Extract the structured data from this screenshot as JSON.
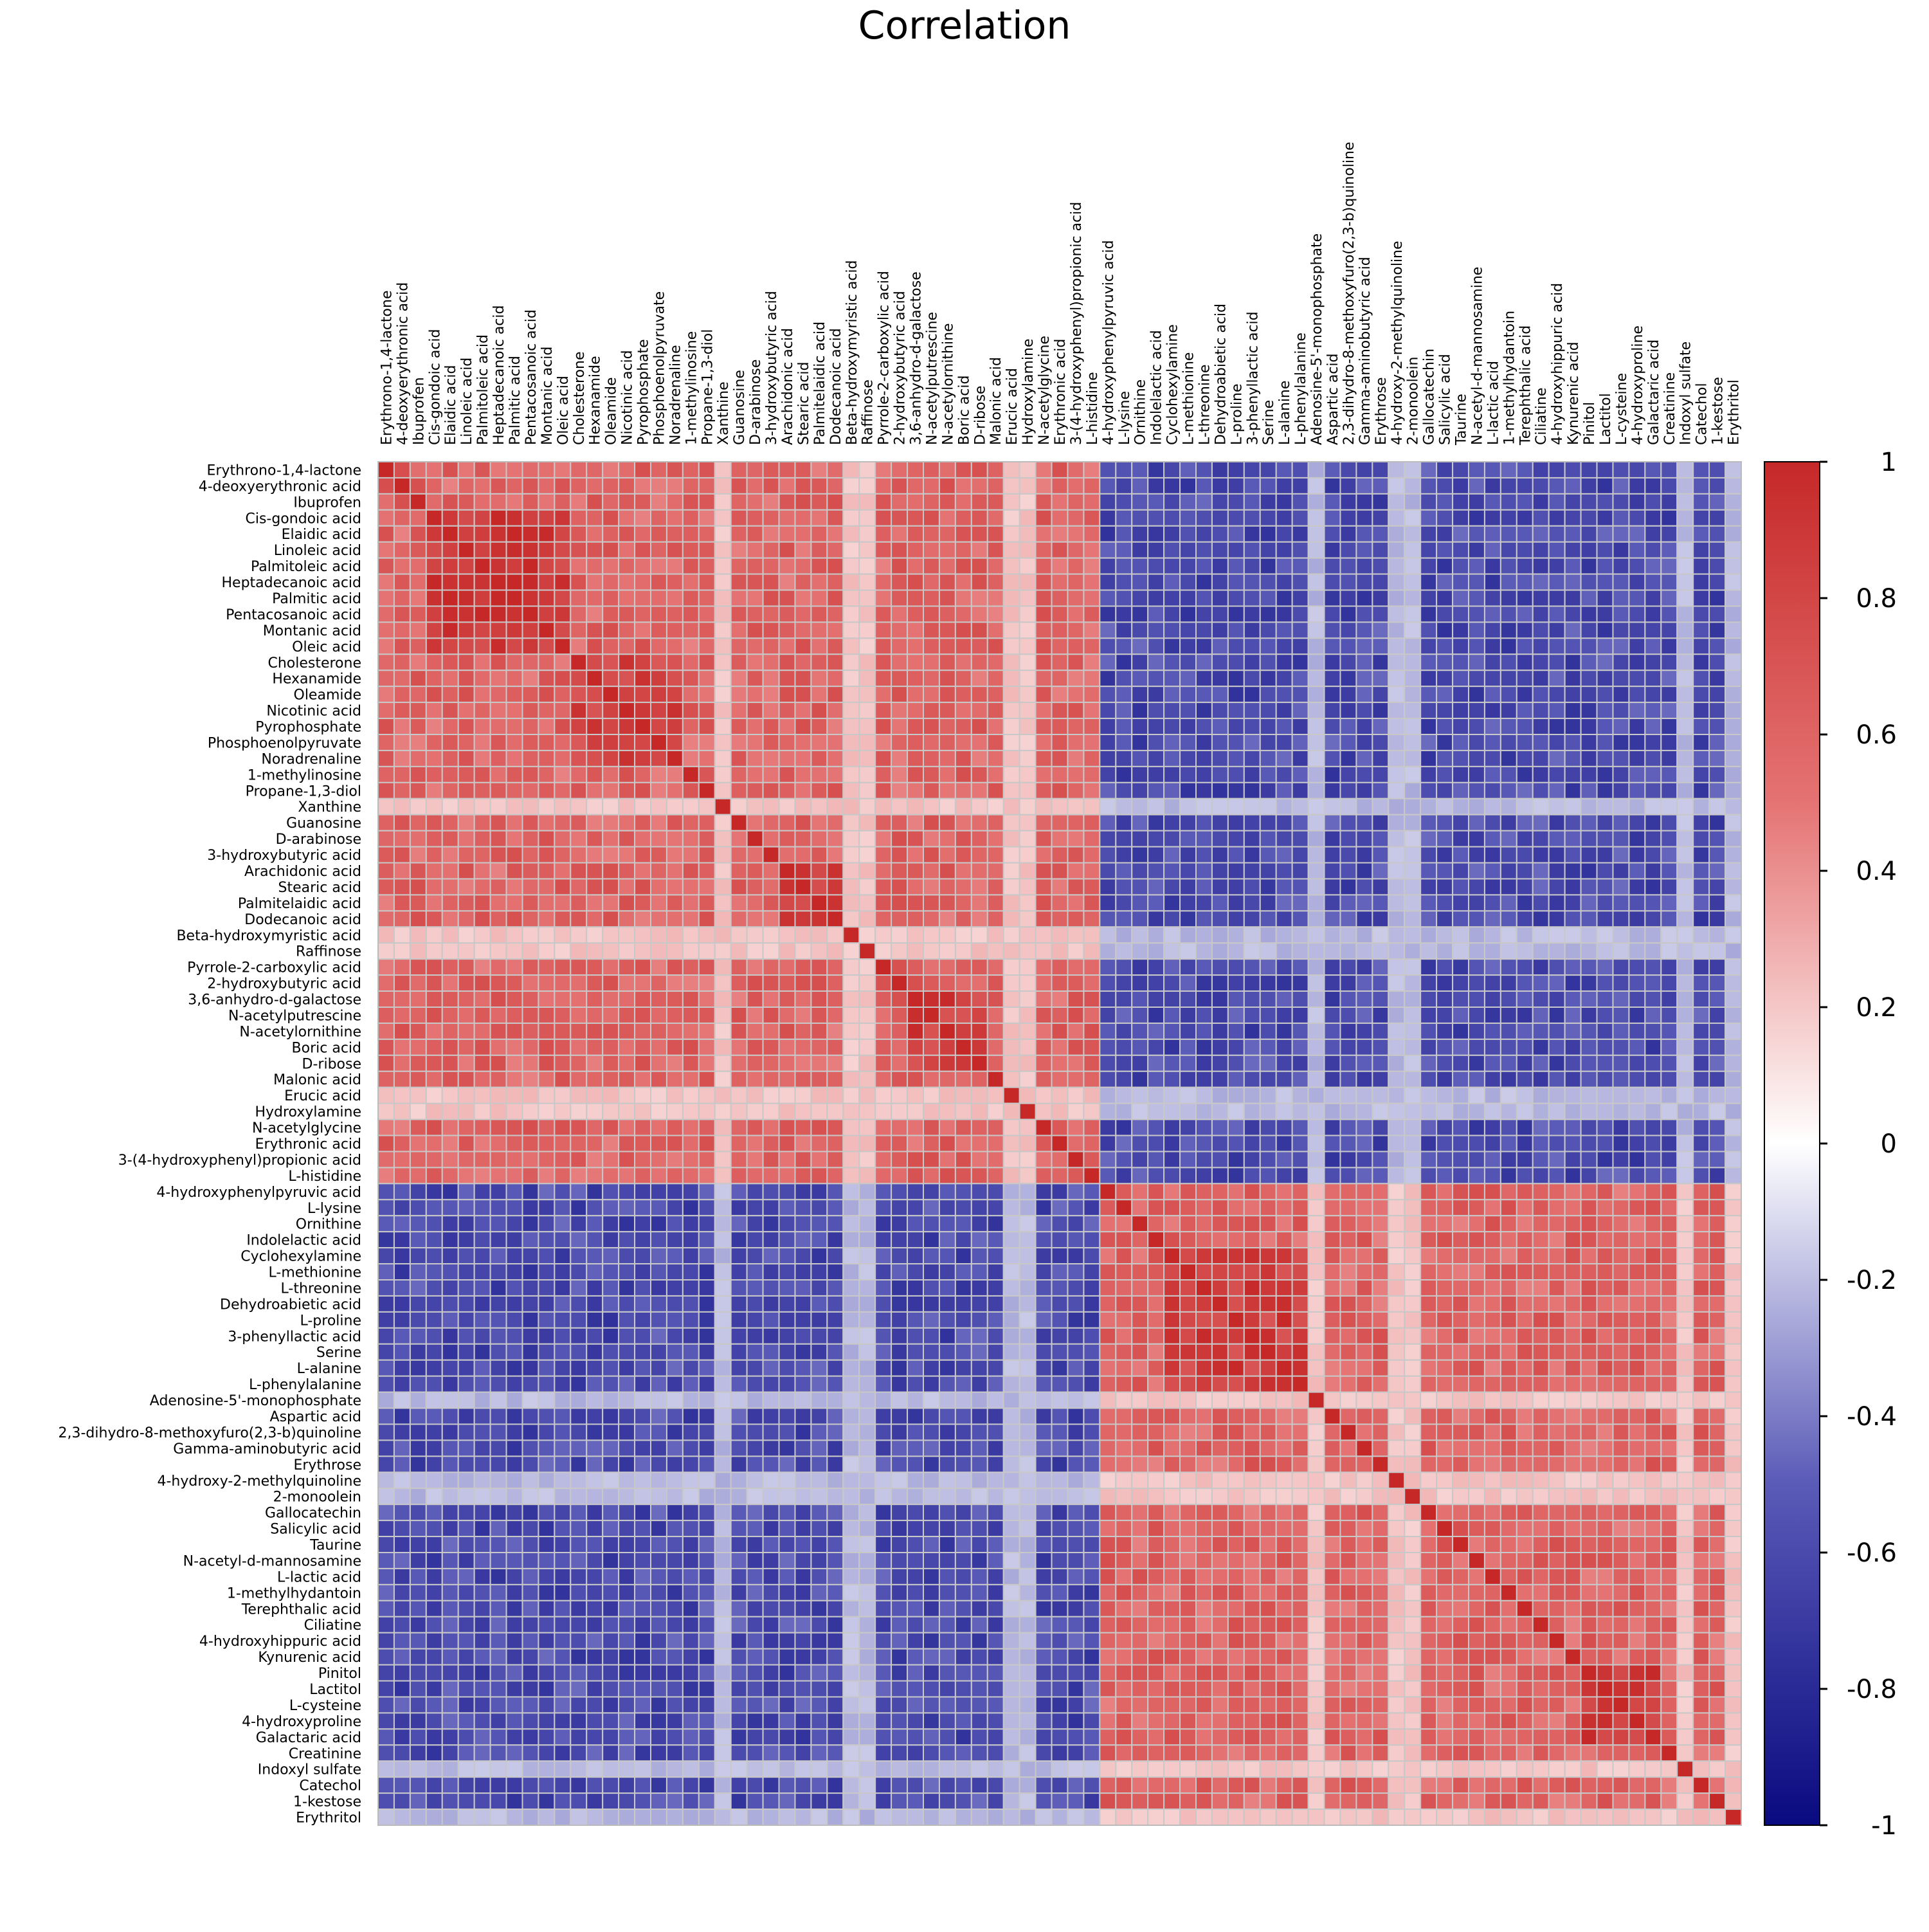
{
  "chart_data": {
    "type": "heatmap",
    "title": "Correlation",
    "legend_placement": "right",
    "colorscale": [
      "#0a0a80",
      "#5a5ab8",
      "#ffffff",
      "#e57373",
      "#c62828"
    ],
    "colorbar_range": [
      -1,
      1
    ],
    "colorbar_ticks": [
      "1",
      "0.8",
      "0.6",
      "0.4",
      "0.2",
      "0",
      "-0.2",
      "-0.4",
      "-0.6",
      "-0.8",
      "-1"
    ],
    "grid": true,
    "variables": [
      "Erythrono-1,4-lactone",
      "4-deoxyerythronic acid",
      "Ibuprofen",
      "Cis-gondoic acid",
      "Elaidic acid",
      "Linoleic acid",
      "Palmitoleic acid",
      "Heptadecanoic acid",
      "Palmitic acid",
      "Pentacosanoic acid",
      "Montanic acid",
      "Oleic acid",
      "Cholesterone",
      "Hexanamide",
      "Oleamide",
      "Nicotinic acid",
      "Pyrophosphate",
      "Phosphoenolpyruvate",
      "Noradrenaline",
      "1-methylinosine",
      "Propane-1,3-diol",
      "Xanthine",
      "Guanosine",
      "D-arabinose",
      "3-hydroxybutyric acid",
      "Arachidonic acid",
      "Stearic acid",
      "Palmitelaidic acid",
      "Dodecanoic acid",
      "Beta-hydroxymyristic acid",
      "Raffinose",
      "Pyrrole-2-carboxylic acid",
      "2-hydroxybutyric acid",
      "3,6-anhydro-d-galactose",
      "N-acetylputrescine",
      "N-acetylornithine",
      "Boric acid",
      "D-ribose",
      "Malonic acid",
      "Erucic acid",
      "Hydroxylamine",
      "N-acetylglycine",
      "Erythronic acid",
      "3-(4-hydroxyphenyl)propionic acid",
      "L-histidine",
      "4-hydroxyphenylpyruvic acid",
      "L-lysine",
      "Ornithine",
      "Indolelactic acid",
      "Cyclohexylamine",
      "L-methionine",
      "L-threonine",
      "Dehydroabietic acid",
      "L-proline",
      "3-phenyllactic acid",
      "Serine",
      "L-alanine",
      "L-phenylalanine",
      "Adenosine-5'-monophosphate",
      "Aspartic acid",
      "2,3-dihydro-8-methoxyfuro(2,3-b)quinoline",
      "Gamma-aminobutyric acid",
      "Erythrose",
      "4-hydroxy-2-methylquinoline",
      "2-monoolein",
      "Gallocatechin",
      "Salicylic acid",
      "Taurine",
      "N-acetyl-d-mannosamine",
      "L-lactic acid",
      "1-methylhydantoin",
      "Terephthalic acid",
      "Ciliatine",
      "4-hydroxyhippuric acid",
      "Kynurenic acid",
      "Pinitol",
      "Lactitol",
      "L-cysteine",
      "4-hydroxyproline",
      "Galactaric acid",
      "Creatinine",
      "Indoxyl sulfate",
      "Catechol",
      "1-kestose",
      "Erythritol"
    ],
    "blocks": [
      {
        "name": "",
        "start": 0,
        "end": 44
      },
      {
        "name": "",
        "start": 45,
        "end": 84
      }
    ],
    "within_block_typical_r": 0.6,
    "between_block_typical_r": -0.6,
    "weak_correlation_variables": [
      "Xanthine",
      "Raffinose",
      "Beta-hydroxymyristic acid",
      "Adenosine-5'-monophosphate",
      "2-monoolein",
      "4-hydroxy-2-methylquinoline",
      "Indoxyl sulfate",
      "Erythritol",
      "Hydroxylamine",
      "Erucic acid"
    ],
    "strong_subblocks": [
      {
        "variables": [
          "Cis-gondoic acid",
          "Elaidic acid",
          "Linoleic acid",
          "Palmitoleic acid",
          "Heptadecanoic acid",
          "Palmitic acid",
          "Pentacosanoic acid",
          "Montanic acid",
          "Oleic acid"
        ],
        "r": 0.88
      },
      {
        "variables": [
          "Cholesterone",
          "Hexanamide",
          "Oleamide",
          "Nicotinic acid",
          "Pyrophosphate",
          "Phosphoenolpyruvate",
          "Noradrenaline"
        ],
        "r": 0.82
      },
      {
        "variables": [
          "Arachidonic acid",
          "Stearic acid",
          "Palmitelaidic acid",
          "Dodecanoic acid"
        ],
        "r": 0.85
      },
      {
        "variables": [
          "3,6-anhydro-d-galactose",
          "N-acetylputrescine",
          "N-acetylornithine",
          "Boric acid",
          "D-ribose"
        ],
        "r": 0.85
      },
      {
        "variables": [
          "Cyclohexylamine",
          "L-methionine",
          "L-threonine",
          "Dehydroabietic acid",
          "L-proline",
          "3-phenyllactic acid",
          "Serine",
          "L-alanine",
          "L-phenylalanine"
        ],
        "r": 0.85
      },
      {
        "variables": [
          "Pinitol",
          "Lactitol",
          "L-cysteine",
          "4-hydroxyproline",
          "Galactaric acid"
        ],
        "r": 0.85
      }
    ]
  }
}
